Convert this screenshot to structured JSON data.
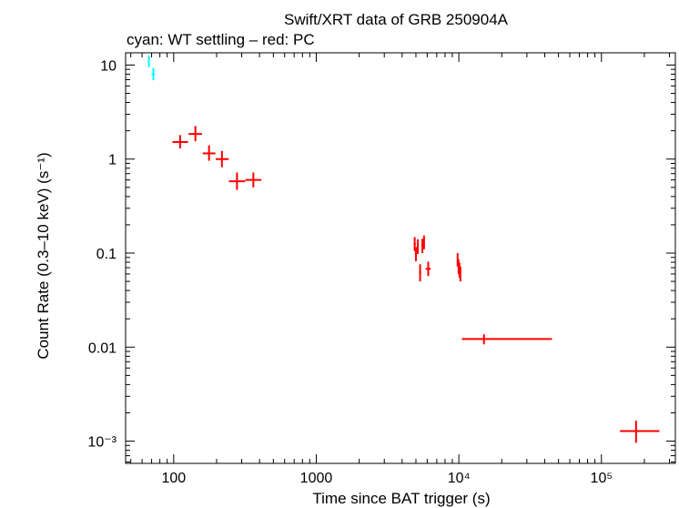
{
  "chart_data": {
    "type": "scatter",
    "title": "Swift/XRT data of GRB 250904A",
    "subtitle": "cyan: WT settling – red: PC",
    "xlabel": "Time since BAT trigger (s)",
    "ylabel": "Count Rate (0.3–10 keV) (s⁻¹)",
    "xscale": "log",
    "yscale": "log",
    "xlim": [
      46,
      330000
    ],
    "ylim": [
      0.00058,
      13.5
    ],
    "grid": false,
    "x_ticks": [
      {
        "value": 100,
        "label": "100"
      },
      {
        "value": 1000,
        "label": "1000"
      },
      {
        "value": 10000,
        "label": "10⁴"
      },
      {
        "value": 100000,
        "label": "10⁵"
      }
    ],
    "y_ticks": [
      {
        "value": 10,
        "label": "10"
      },
      {
        "value": 1,
        "label": "1"
      },
      {
        "value": 0.1,
        "label": "0.1"
      },
      {
        "value": 0.01,
        "label": "0.01"
      },
      {
        "value": 0.001,
        "label": "10⁻³"
      }
    ],
    "series": [
      {
        "color": "#00ffff",
        "points": [
          {
            "x": 67,
            "xlo": 66,
            "xhi": 68,
            "y": 11.0,
            "ylo": 9.5,
            "yhi": 12.6
          },
          {
            "x": 72,
            "xlo": 70,
            "xhi": 74,
            "y": 8.0,
            "ylo": 6.9,
            "yhi": 9.3
          }
        ]
      },
      {
        "color": "#ff0000",
        "points": [
          {
            "x": 111,
            "xlo": 98,
            "xhi": 126,
            "y": 1.52,
            "ylo": 1.3,
            "yhi": 1.8
          },
          {
            "x": 142,
            "xlo": 127,
            "xhi": 158,
            "y": 1.85,
            "ylo": 1.55,
            "yhi": 2.25
          },
          {
            "x": 177,
            "xlo": 160,
            "xhi": 196,
            "y": 1.15,
            "ylo": 0.96,
            "yhi": 1.4
          },
          {
            "x": 218,
            "xlo": 197,
            "xhi": 243,
            "y": 1.0,
            "ylo": 0.82,
            "yhi": 1.22
          },
          {
            "x": 278,
            "xlo": 244,
            "xhi": 317,
            "y": 0.58,
            "ylo": 0.47,
            "yhi": 0.72
          },
          {
            "x": 362,
            "xlo": 318,
            "xhi": 412,
            "y": 0.6,
            "ylo": 0.5,
            "yhi": 0.72
          },
          {
            "x": 4900,
            "xlo": 4820,
            "xhi": 4990,
            "y": 0.125,
            "ylo": 0.105,
            "yhi": 0.148
          },
          {
            "x": 5000,
            "xlo": 4920,
            "xhi": 5080,
            "y": 0.098,
            "ylo": 0.082,
            "yhi": 0.116
          },
          {
            "x": 5150,
            "xlo": 5080,
            "xhi": 5230,
            "y": 0.118,
            "ylo": 0.098,
            "yhi": 0.14
          },
          {
            "x": 5350,
            "xlo": 5260,
            "xhi": 5440,
            "y": 0.062,
            "ylo": 0.05,
            "yhi": 0.076
          },
          {
            "x": 5550,
            "xlo": 5450,
            "xhi": 5650,
            "y": 0.12,
            "ylo": 0.1,
            "yhi": 0.142
          },
          {
            "x": 5700,
            "xlo": 5620,
            "xhi": 5780,
            "y": 0.13,
            "ylo": 0.11,
            "yhi": 0.154
          },
          {
            "x": 6100,
            "xlo": 5850,
            "xhi": 6350,
            "y": 0.068,
            "ylo": 0.057,
            "yhi": 0.081
          },
          {
            "x": 9800,
            "xlo": 9700,
            "xhi": 9900,
            "y": 0.085,
            "ylo": 0.072,
            "yhi": 0.1
          },
          {
            "x": 9950,
            "xlo": 9880,
            "xhi": 10030,
            "y": 0.072,
            "ylo": 0.06,
            "yhi": 0.086
          },
          {
            "x": 10100,
            "xlo": 10030,
            "xhi": 10170,
            "y": 0.066,
            "ylo": 0.055,
            "yhi": 0.079
          },
          {
            "x": 10250,
            "xlo": 10170,
            "xhi": 10330,
            "y": 0.06,
            "ylo": 0.05,
            "yhi": 0.072
          },
          {
            "x": 15000,
            "xlo": 10500,
            "xhi": 45000,
            "y": 0.0122,
            "ylo": 0.0107,
            "yhi": 0.0137
          },
          {
            "x": 175000,
            "xlo": 135000,
            "xhi": 255000,
            "y": 0.00128,
            "ylo": 0.00096,
            "yhi": 0.00165
          }
        ]
      }
    ]
  }
}
